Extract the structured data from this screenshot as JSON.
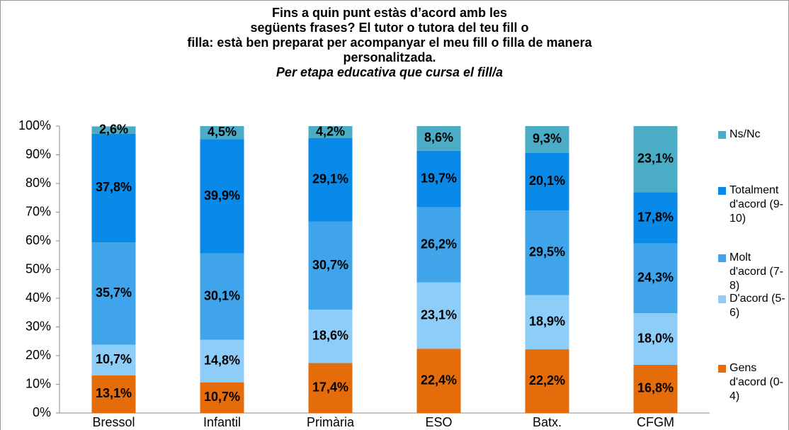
{
  "chart_data": {
    "type": "stacked_bar",
    "title": [
      "Fins a quin punt estàs d’acord amb les",
      "següents frases? El tutor o tutora del teu fill o",
      "filla: està ben preparat per acompanyar el meu fill o filla de manera",
      "personalitzada."
    ],
    "subtitle": "Per etapa educativa que cursa el fill/a",
    "categories": [
      "Bressol",
      "Infantil",
      "Primària",
      "ESO",
      "Batx.",
      "CFGM"
    ],
    "series": [
      {
        "name": "Gens d'acord (0-4)",
        "color": "#e46c0a",
        "values": [
          13.1,
          10.7,
          17.4,
          22.4,
          22.2,
          16.8
        ],
        "value_labels": [
          "13,1%",
          "10,7%",
          "17,4%",
          "22,4%",
          "22,2%",
          "16,8%"
        ]
      },
      {
        "name": "D'acord (5-6)",
        "color": "#8ecdf8",
        "values": [
          10.7,
          14.8,
          18.6,
          23.1,
          18.9,
          18.0
        ],
        "value_labels": [
          "10,7%",
          "14,8%",
          "18,6%",
          "23,1%",
          "18,9%",
          "18,0%"
        ]
      },
      {
        "name": "Molt d'acord (7-8)",
        "color": "#40a4ea",
        "values": [
          35.7,
          30.1,
          30.7,
          26.2,
          29.5,
          24.3
        ],
        "value_labels": [
          "35,7%",
          "30,1%",
          "30,7%",
          "26,2%",
          "29,5%",
          "24,3%"
        ]
      },
      {
        "name": "Totalment d'acord (9-10)",
        "color": "#0a8ae8",
        "values": [
          37.8,
          39.9,
          29.1,
          19.7,
          20.1,
          17.8
        ],
        "value_labels": [
          "37,8%",
          "39,9%",
          "29,1%",
          "19,7%",
          "20,1%",
          "17,8%"
        ]
      },
      {
        "name": "Ns/Nc",
        "color": "#4bacc6",
        "values": [
          2.6,
          4.5,
          4.2,
          8.6,
          9.3,
          23.1
        ],
        "value_labels": [
          "2,6%",
          "4,5%",
          "4,2%",
          "8,6%",
          "9,3%",
          "23,1%"
        ]
      }
    ],
    "ylim": [
      0,
      100
    ],
    "yticks": [
      {
        "value": 0,
        "label": "0%"
      },
      {
        "value": 10,
        "label": "10%"
      },
      {
        "value": 20,
        "label": "20%"
      },
      {
        "value": 30,
        "label": "30%"
      },
      {
        "value": 40,
        "label": "40%"
      },
      {
        "value": 50,
        "label": "50%"
      },
      {
        "value": 60,
        "label": "60%"
      },
      {
        "value": 70,
        "label": "70%"
      },
      {
        "value": 80,
        "label": "80%"
      },
      {
        "value": 90,
        "label": "90%"
      },
      {
        "value": 100,
        "label": "100%"
      }
    ],
    "legend": "right"
  }
}
